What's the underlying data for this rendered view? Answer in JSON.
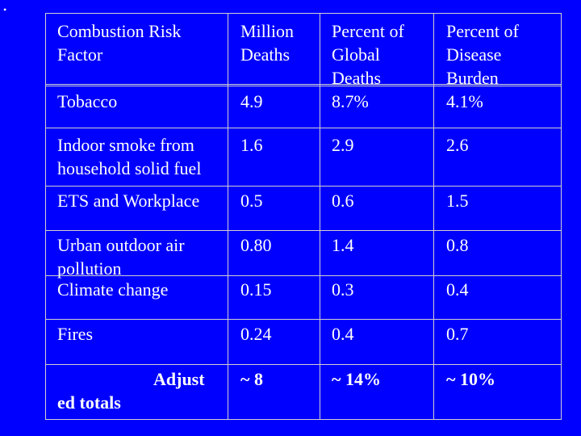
{
  "slide": {
    "bullet": "•"
  },
  "table": {
    "headers": {
      "factor": [
        "Combustion Risk",
        "Factor"
      ],
      "deaths": [
        "Million",
        "Deaths"
      ],
      "global": [
        "Percent of",
        "Global",
        "Deaths"
      ],
      "burden": [
        "Percent of",
        "Disease",
        "Burden"
      ]
    },
    "rows": [
      {
        "factor": [
          "Tobacco"
        ],
        "deaths": "4.9",
        "global": "8.7%",
        "burden": "4.1%"
      },
      {
        "factor": [
          "Indoor smoke from",
          "household solid fuel"
        ],
        "deaths": "1.6",
        "global": "2.9",
        "burden": "2.6"
      },
      {
        "factor": [
          "ETS and Workplace"
        ],
        "deaths": "0.5",
        "global": "0.6",
        "burden": "1.5"
      },
      {
        "factor": [
          "Urban outdoor air",
          "pollution"
        ],
        "deaths": "0.80",
        "global": "1.4",
        "burden": "0.8"
      },
      {
        "factor": [
          "Climate change"
        ],
        "deaths": "0.15",
        "global": "0.3",
        "burden": "0.4"
      },
      {
        "factor": [
          "Fires"
        ],
        "deaths": "0.24",
        "global": "0.4",
        "burden": "0.7"
      }
    ],
    "totals": {
      "label_part1": "Adjust",
      "label_part2": "ed totals",
      "deaths": "~ 8",
      "global": "~ 14%",
      "burden": "~ 10%"
    }
  }
}
